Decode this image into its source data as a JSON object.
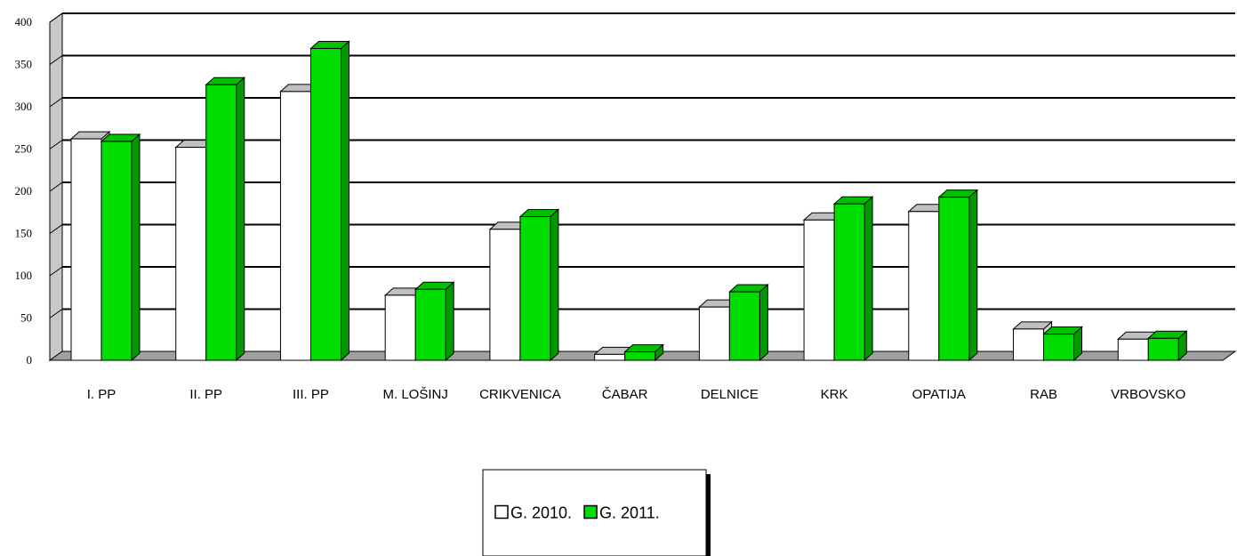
{
  "chart_data": {
    "type": "bar",
    "categories": [
      "I. PP",
      "II. PP",
      "III. PP",
      "M. LOŠINJ",
      "CRIKVENICA",
      "ČABAR",
      "DELNICE",
      "KRK",
      "OPATIJA",
      "RAB",
      "VRBOVSKO"
    ],
    "series": [
      {
        "name": "G. 2010.",
        "values": [
          262,
          252,
          318,
          77,
          155,
          7,
          63,
          166,
          176,
          37,
          25
        ],
        "color": "#ffffff",
        "top_color": "#c0c0c0",
        "side_color": "#d0d0d0"
      },
      {
        "name": "G. 2011.",
        "values": [
          259,
          326,
          369,
          84,
          170,
          10,
          81,
          185,
          193,
          31,
          26
        ],
        "color": "#00dd00",
        "top_color": "#00c000",
        "side_color": "#009900"
      }
    ],
    "yticks": [
      "0",
      "50",
      "100",
      "150",
      "200",
      "250",
      "300",
      "350",
      "400"
    ],
    "ylim": [
      0,
      400
    ],
    "grid": true,
    "legend_position": "bottom-center",
    "title": "",
    "xlabel": "",
    "ylabel": ""
  }
}
